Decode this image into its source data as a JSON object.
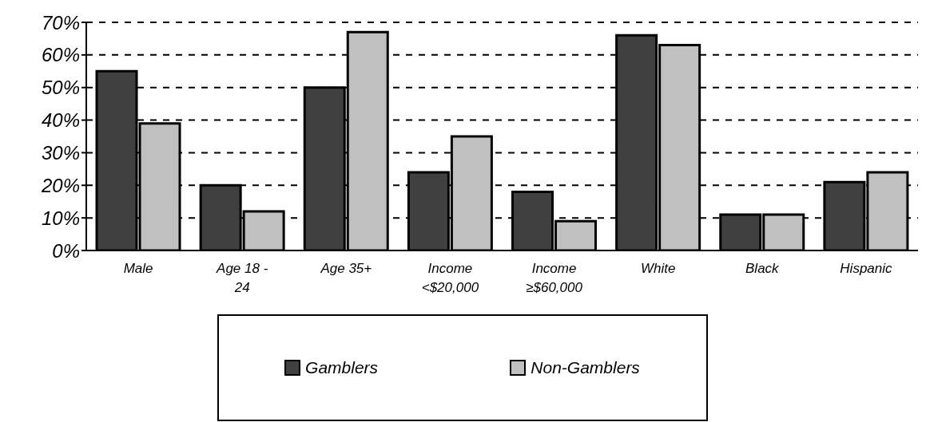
{
  "chart_data": {
    "type": "bar",
    "categories": [
      "Male",
      "Age 18 - 24",
      "Age 35+",
      "Income <$20,000",
      "Income ≥$60,000",
      "White",
      "Black",
      "Hispanic"
    ],
    "series": [
      {
        "name": "Gamblers",
        "color": "#404040",
        "values": [
          55,
          20,
          50,
          24,
          18,
          66,
          11,
          21
        ]
      },
      {
        "name": "Non-Gamblers",
        "color": "#c0c0c0",
        "values": [
          39,
          12,
          67,
          35,
          9,
          63,
          11,
          24
        ]
      }
    ],
    "ylim": [
      0,
      70
    ],
    "yticks": [
      {
        "value": 0,
        "label": "0%"
      },
      {
        "value": 10,
        "label": "10%"
      },
      {
        "value": 20,
        "label": "20%"
      },
      {
        "value": 30,
        "label": "30%"
      },
      {
        "value": 40,
        "label": "40%"
      },
      {
        "value": 50,
        "label": "50%"
      },
      {
        "value": 60,
        "label": "60%"
      },
      {
        "value": 70,
        "label": "70%"
      }
    ],
    "grid": "y",
    "legend": "bottom"
  }
}
